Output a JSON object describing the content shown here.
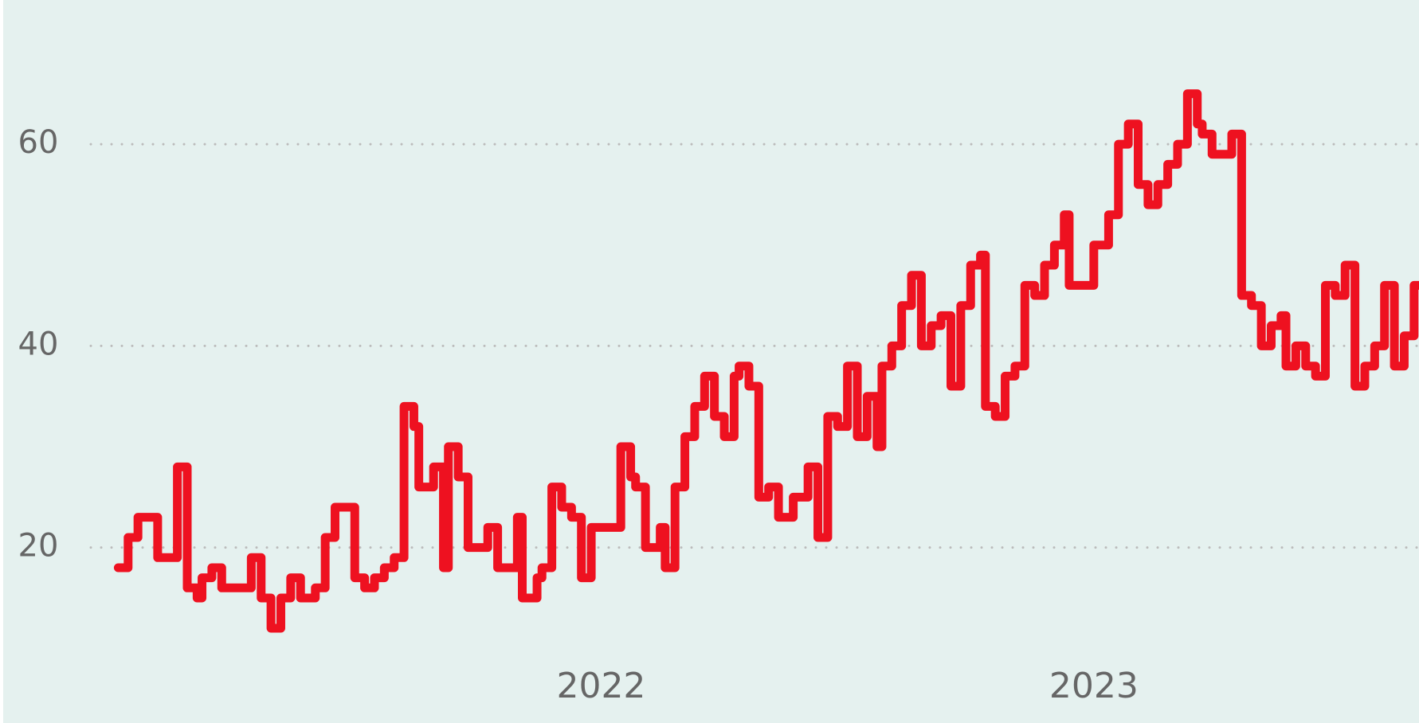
{
  "chart_data": {
    "type": "step",
    "x": [
      2021.02,
      2021.04,
      2021.06,
      2021.1,
      2021.14,
      2021.16,
      2021.18,
      2021.19,
      2021.21,
      2021.23,
      2021.29,
      2021.31,
      2021.33,
      2021.35,
      2021.37,
      2021.39,
      2021.42,
      2021.44,
      2021.46,
      2021.5,
      2021.52,
      2021.54,
      2021.56,
      2021.58,
      2021.6,
      2021.62,
      2021.63,
      2021.66,
      2021.68,
      2021.69,
      2021.71,
      2021.73,
      2021.77,
      2021.79,
      2021.83,
      2021.84,
      2021.87,
      2021.88,
      2021.9,
      2021.92,
      2021.94,
      2021.96,
      2021.98,
      2022.04,
      2022.06,
      2022.07,
      2022.09,
      2022.12,
      2022.13,
      2022.15,
      2022.17,
      2022.19,
      2022.21,
      2022.23,
      2022.25,
      2022.27,
      2022.28,
      2022.3,
      2022.32,
      2022.34,
      2022.36,
      2022.39,
      2022.42,
      2022.44,
      2022.46,
      2022.48,
      2022.5,
      2022.52,
      2022.54,
      2022.56,
      2022.57,
      2022.59,
      2022.61,
      2022.63,
      2022.65,
      2022.67,
      2022.69,
      2022.71,
      2022.73,
      2022.75,
      2022.77,
      2022.78,
      2022.8,
      2022.82,
      2022.84,
      2022.86,
      2022.88,
      2022.9,
      2022.92,
      2022.94,
      2022.95,
      2023.0,
      2023.03,
      2023.05,
      2023.07,
      2023.09,
      2023.11,
      2023.13,
      2023.15,
      2023.17,
      2023.19,
      2023.21,
      2023.22,
      2023.24,
      2023.28,
      2023.3,
      2023.32,
      2023.34,
      2023.36,
      2023.38,
      2023.39,
      2023.41,
      2023.43,
      2023.45,
      2023.47,
      2023.49,
      2023.51,
      2023.53,
      2023.55,
      2023.57,
      2023.59,
      2023.61,
      2023.63,
      2023.65
    ],
    "series": [
      {
        "color": "#ee1120",
        "values": [
          18,
          21,
          23,
          19,
          28,
          16,
          15,
          17,
          18,
          16,
          19,
          15,
          12,
          15,
          17,
          15,
          16,
          21,
          24,
          17,
          16,
          17,
          18,
          19,
          34,
          32,
          26,
          28,
          18,
          30,
          27,
          20,
          22,
          18,
          23,
          15,
          17,
          18,
          26,
          24,
          23,
          17,
          22,
          30,
          27,
          26,
          20,
          22,
          18,
          26,
          31,
          34,
          37,
          33,
          31,
          37,
          38,
          36,
          25,
          26,
          23,
          25,
          28,
          21,
          33,
          32,
          38,
          31,
          35,
          30,
          38,
          40,
          44,
          47,
          40,
          42,
          43,
          36,
          44,
          48,
          49,
          34,
          33,
          37,
          38,
          46,
          45,
          48,
          50,
          53,
          46,
          50,
          53,
          60,
          62,
          56,
          54,
          56,
          58,
          60,
          65,
          62,
          61,
          59,
          61,
          45,
          44,
          40,
          42,
          43,
          38,
          40,
          38,
          37,
          46,
          45,
          48,
          36,
          38,
          40,
          46,
          38,
          41,
          46
        ]
      }
    ],
    "xlim": [
      2020.78,
      2023.66
    ],
    "xticks": [
      2022,
      2023
    ],
    "ylim": [
      2.6,
      74.3
    ],
    "yticks": [
      20,
      40,
      60
    ],
    "grid": true
  }
}
